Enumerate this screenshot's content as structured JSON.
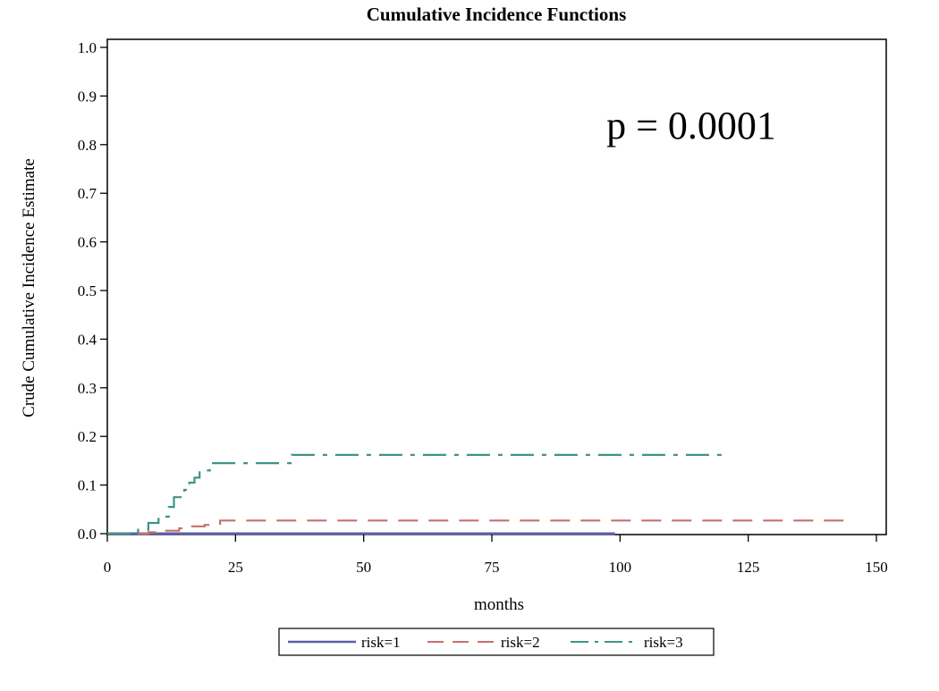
{
  "chart_data": {
    "type": "line",
    "title": "Cumulative Incidence Functions",
    "xlabel": "months",
    "ylabel": "Crude Cumulative Incidence Estimate",
    "xlim": [
      0,
      150
    ],
    "ylim": [
      0,
      1.0
    ],
    "x_ticks": [
      "0",
      "25",
      "50",
      "75",
      "100",
      "125",
      "150"
    ],
    "y_ticks": [
      "0.0",
      "0.1",
      "0.2",
      "0.3",
      "0.4",
      "0.5",
      "0.6",
      "0.7",
      "0.8",
      "0.9",
      "1.0"
    ],
    "grid": false,
    "step": true,
    "legend_position": "bottom",
    "annotation": "p = 0.0001",
    "series": [
      {
        "name": "risk=1",
        "color": "#5b5ea6",
        "dash": "solid",
        "points": [
          [
            0,
            0.0
          ],
          [
            99,
            0.0
          ]
        ]
      },
      {
        "name": "risk=2",
        "color": "#c8706f",
        "dash": "dashed",
        "points": [
          [
            0,
            0.0
          ],
          [
            8,
            0.003
          ],
          [
            11,
            0.006
          ],
          [
            14,
            0.011
          ],
          [
            16,
            0.015
          ],
          [
            19,
            0.018
          ],
          [
            22,
            0.027
          ],
          [
            145,
            0.027
          ]
        ]
      },
      {
        "name": "risk=3",
        "color": "#3e9487",
        "dash": "dashdot",
        "points": [
          [
            0,
            0.0
          ],
          [
            6,
            0.008
          ],
          [
            8,
            0.022
          ],
          [
            10,
            0.035
          ],
          [
            12,
            0.055
          ],
          [
            13,
            0.075
          ],
          [
            15,
            0.09
          ],
          [
            16,
            0.105
          ],
          [
            17,
            0.115
          ],
          [
            18,
            0.13
          ],
          [
            20,
            0.145
          ],
          [
            36,
            0.162
          ],
          [
            120,
            0.162
          ]
        ]
      }
    ]
  }
}
